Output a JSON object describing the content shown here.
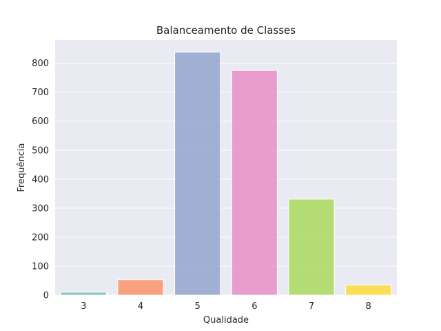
{
  "chart_data": {
    "type": "bar",
    "title": "Balanceamento de Classes",
    "xlabel": "Qualidade",
    "ylabel": "Frequência",
    "categories": [
      "3",
      "4",
      "5",
      "6",
      "7",
      "8"
    ],
    "values": [
      10,
      53,
      838,
      775,
      331,
      35
    ],
    "colors": [
      "#66c2a5",
      "#fc8d62",
      "#8da0cb",
      "#e78ac3",
      "#a6d854",
      "#ffd92f"
    ],
    "ylim": [
      0,
      880
    ],
    "yticks": [
      0,
      100,
      200,
      300,
      400,
      500,
      600,
      700,
      800
    ],
    "grid": true,
    "background": "#eaeaf2"
  }
}
